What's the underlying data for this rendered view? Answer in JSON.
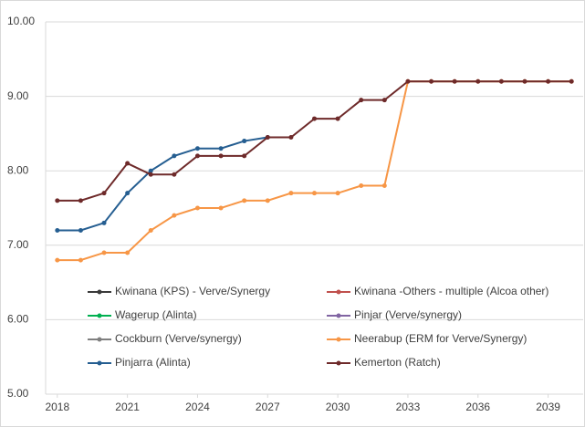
{
  "chart_data": {
    "type": "line",
    "x": [
      2018,
      2019,
      2020,
      2021,
      2022,
      2023,
      2024,
      2025,
      2026,
      2027,
      2028,
      2029,
      2030,
      2031,
      2032,
      2033,
      2034,
      2035,
      2036,
      2037,
      2038,
      2039,
      2040
    ],
    "xlim": [
      2017.5,
      2040.5
    ],
    "xticks": [
      2018,
      2021,
      2024,
      2027,
      2030,
      2033,
      2036,
      2039
    ],
    "ylim": [
      5,
      10
    ],
    "yticks": [
      {
        "value": 5,
        "label": "5.00"
      },
      {
        "value": 6,
        "label": "6.00"
      },
      {
        "value": 7,
        "label": "7.00"
      },
      {
        "value": 8,
        "label": "8.00"
      },
      {
        "value": 9,
        "label": "9.00"
      },
      {
        "value": 10,
        "label": "10.00"
      }
    ],
    "grid": true,
    "legend": "bottom",
    "series": [
      {
        "name": "Kwinana (KPS) - Verve/Synergy",
        "color": "#3a3a3a",
        "values": [
          null,
          null,
          null,
          null,
          null,
          null,
          null,
          null,
          null,
          null,
          null,
          null,
          null,
          null,
          null,
          null,
          null,
          null,
          null,
          null,
          null,
          null,
          null
        ]
      },
      {
        "name": "Kwinana -Others - multiple (Alcoa other)",
        "color": "#c0504d",
        "values": [
          null,
          null,
          null,
          null,
          null,
          null,
          null,
          null,
          null,
          null,
          null,
          null,
          null,
          null,
          null,
          null,
          null,
          null,
          null,
          null,
          null,
          null,
          null
        ]
      },
      {
        "name": "Wagerup (Alinta)",
        "color": "#00b050",
        "values": [
          null,
          null,
          null,
          null,
          null,
          null,
          null,
          null,
          null,
          null,
          null,
          null,
          null,
          null,
          null,
          null,
          null,
          null,
          null,
          null,
          null,
          null,
          null
        ]
      },
      {
        "name": "Pinjar (Verve/synergy)",
        "color": "#8064a2",
        "values": [
          null,
          null,
          null,
          null,
          null,
          null,
          null,
          null,
          null,
          null,
          null,
          null,
          null,
          null,
          null,
          null,
          null,
          null,
          null,
          null,
          null,
          null,
          null
        ]
      },
      {
        "name": "Cockburn (Verve/synergy)",
        "color": "#7f7f7f",
        "values": [
          null,
          null,
          null,
          null,
          null,
          null,
          null,
          null,
          null,
          null,
          null,
          null,
          null,
          null,
          null,
          null,
          null,
          null,
          null,
          null,
          null,
          null,
          null
        ]
      },
      {
        "name": "Neerabup (ERM for Verve/Synergy)",
        "color": "#f79646",
        "values": [
          6.8,
          6.8,
          6.9,
          6.9,
          7.2,
          7.4,
          7.5,
          7.5,
          7.6,
          7.6,
          7.7,
          7.7,
          7.7,
          7.8,
          7.8,
          9.2,
          9.2,
          9.2,
          9.2,
          9.2,
          9.2,
          9.2,
          9.2
        ]
      },
      {
        "name": "Pinjarra (Alinta)",
        "color": "#255e91",
        "values": [
          7.2,
          7.2,
          7.3,
          7.7,
          8.0,
          8.2,
          8.3,
          8.3,
          8.4,
          8.45,
          null,
          null,
          null,
          null,
          null,
          null,
          null,
          null,
          null,
          null,
          null,
          null,
          null
        ]
      },
      {
        "name": "Kemerton (Ratch)",
        "color": "#6e2a2a",
        "values": [
          7.6,
          7.6,
          7.7,
          8.1,
          7.95,
          7.95,
          8.2,
          8.2,
          8.2,
          8.45,
          8.45,
          8.7,
          8.7,
          8.95,
          8.95,
          9.2,
          9.2,
          9.2,
          9.2,
          9.2,
          9.2,
          9.2,
          9.2
        ]
      }
    ]
  }
}
